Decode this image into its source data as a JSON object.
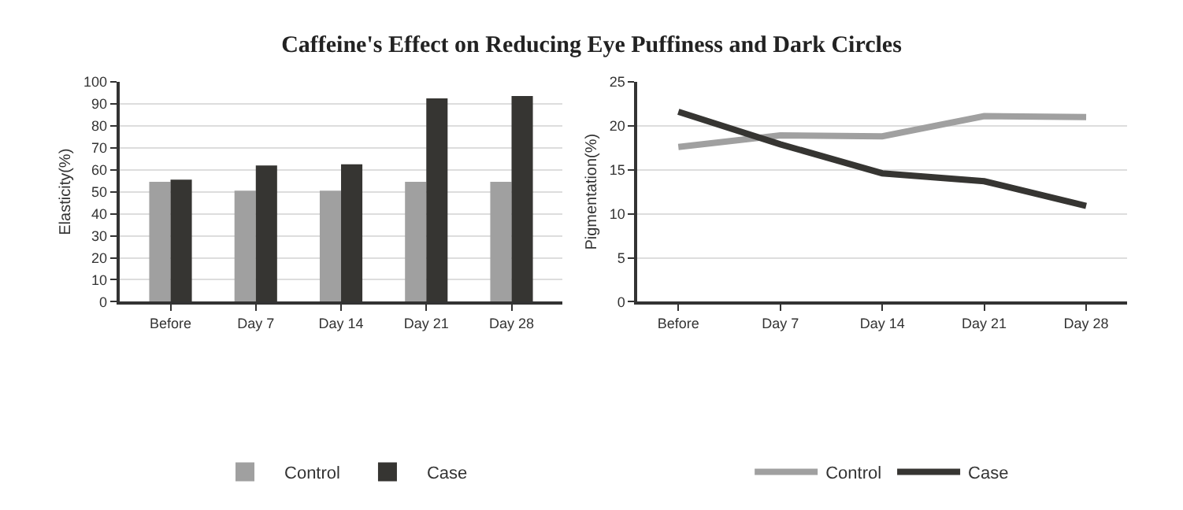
{
  "chart_data": [
    {
      "type": "bar",
      "title": "Caffeine's Effect on Reducing Eye Puffiness and Dark Circles",
      "ylabel": "Elasticity(%)",
      "categories": [
        "Before",
        "Day 7",
        "Day 14",
        "Day 21",
        "Day 28"
      ],
      "series": [
        {
          "name": "Control",
          "color": "#a0a0a0",
          "values": [
            54.5,
            50.5,
            50.5,
            54.5,
            54.5
          ]
        },
        {
          "name": "Case",
          "color": "#363532",
          "values": [
            55.5,
            62,
            62.5,
            92.5,
            93.5
          ]
        }
      ],
      "ylim": [
        0,
        100
      ],
      "yticks": [
        0,
        10,
        20,
        30,
        40,
        50,
        60,
        70,
        80,
        90,
        100
      ],
      "grid": "y",
      "legend": "bottom"
    },
    {
      "type": "line",
      "ylabel": "Pigmentation(%)",
      "categories": [
        "Before",
        "Day 7",
        "Day 14",
        "Day 21",
        "Day 28"
      ],
      "series": [
        {
          "name": "Control",
          "color": "#a0a0a0",
          "values": [
            17.6,
            18.9,
            18.8,
            21.1,
            21.0
          ]
        },
        {
          "name": "Case",
          "color": "#363532",
          "values": [
            21.6,
            17.9,
            14.6,
            13.7,
            10.9
          ]
        }
      ],
      "ylim": [
        0,
        25
      ],
      "yticks": [
        0,
        5,
        10,
        15,
        20,
        25
      ],
      "grid": "y",
      "legend": "bottom",
      "marker": "none",
      "line_style": "solid"
    }
  ]
}
